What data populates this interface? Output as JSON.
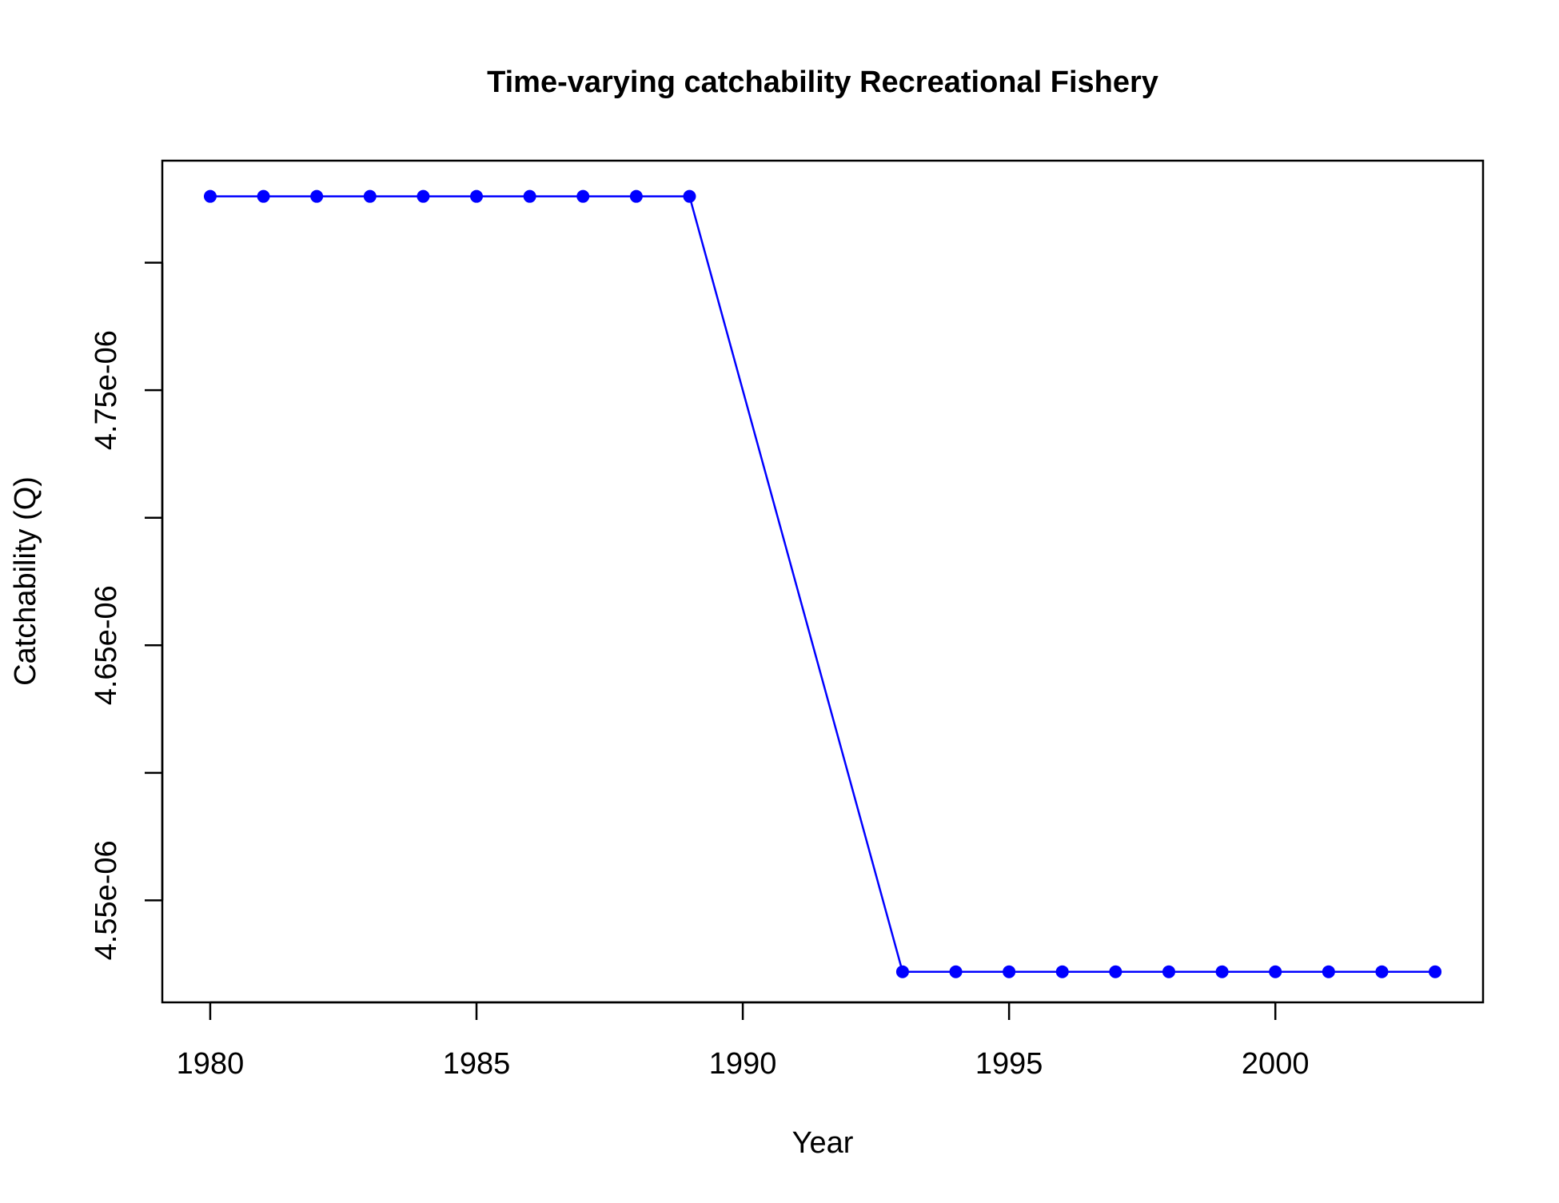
{
  "chart_data": {
    "type": "line",
    "title": "Time-varying catchability Recreational Fishery",
    "xlabel": "Year",
    "ylabel": "Catchability (Q)",
    "xlim": [
      1979.1,
      2003.9
    ],
    "ylim": [
      4.51e-06,
      4.84e-06
    ],
    "x_ticks": [
      1980,
      1985,
      1990,
      1995,
      2000
    ],
    "x_tick_labels": [
      "1980",
      "1985",
      "1990",
      "1995",
      "2000"
    ],
    "y_ticks": [
      4.55e-06,
      4.6e-06,
      4.65e-06,
      4.7e-06,
      4.75e-06,
      4.8e-06
    ],
    "y_tick_labels": [
      "4.55e-06",
      "",
      "4.65e-06",
      "",
      "4.75e-06",
      ""
    ],
    "grid": false,
    "series": [
      {
        "color": "#0000ff",
        "marker": "filled-circle",
        "x": [
          1980,
          1981,
          1982,
          1983,
          1984,
          1985,
          1986,
          1987,
          1988,
          1989,
          1993,
          1994,
          1995,
          1996,
          1997,
          1998,
          1999,
          2000,
          2001,
          2002,
          2003
        ],
        "y": [
          4.826e-06,
          4.826e-06,
          4.826e-06,
          4.826e-06,
          4.826e-06,
          4.826e-06,
          4.826e-06,
          4.826e-06,
          4.826e-06,
          4.826e-06,
          4.522e-06,
          4.522e-06,
          4.522e-06,
          4.522e-06,
          4.522e-06,
          4.522e-06,
          4.522e-06,
          4.522e-06,
          4.522e-06,
          4.522e-06,
          4.522e-06
        ]
      }
    ]
  }
}
